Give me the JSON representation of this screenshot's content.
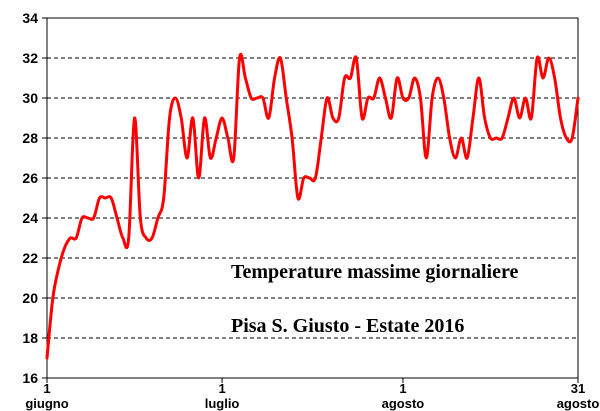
{
  "chart_data": {
    "type": "line",
    "title": "Temperature massime giornaliere",
    "subtitle": "Pisa S. Giusto - Estate 2016",
    "ylim": [
      16,
      34
    ],
    "y_ticks": [
      16,
      18,
      20,
      22,
      24,
      26,
      28,
      30,
      32,
      34
    ],
    "x_count": 92,
    "x_ticks": [
      {
        "index": 0,
        "label": "1",
        "month": "giugno"
      },
      {
        "index": 30,
        "label": "1",
        "month": "luglio"
      },
      {
        "index": 61,
        "label": "1",
        "month": "agosto"
      },
      {
        "index": 91,
        "label": "31",
        "month": "agosto"
      }
    ],
    "grid": "horizontal-dashed",
    "line_color": "#ff0000",
    "series": [
      {
        "values": [
          17,
          20,
          21.5,
          22.5,
          23,
          23,
          24,
          24,
          24,
          25,
          25,
          25,
          24,
          23,
          23,
          29,
          24,
          23,
          23,
          24,
          25,
          29,
          30,
          29,
          27,
          29,
          26,
          29,
          27,
          28,
          29,
          28,
          27,
          32,
          31,
          30,
          30,
          30,
          29,
          31,
          32,
          30,
          28,
          25,
          26,
          26,
          26,
          28,
          30,
          29,
          29,
          31,
          31,
          32,
          29,
          30,
          30,
          31,
          30,
          29,
          31,
          30,
          30,
          31,
          30,
          27,
          30,
          31,
          30,
          28,
          27,
          28,
          27,
          29,
          31,
          29,
          28,
          28,
          28,
          29,
          30,
          29,
          30,
          29,
          32,
          31,
          32,
          31,
          29,
          28,
          28,
          30
        ]
      }
    ]
  }
}
